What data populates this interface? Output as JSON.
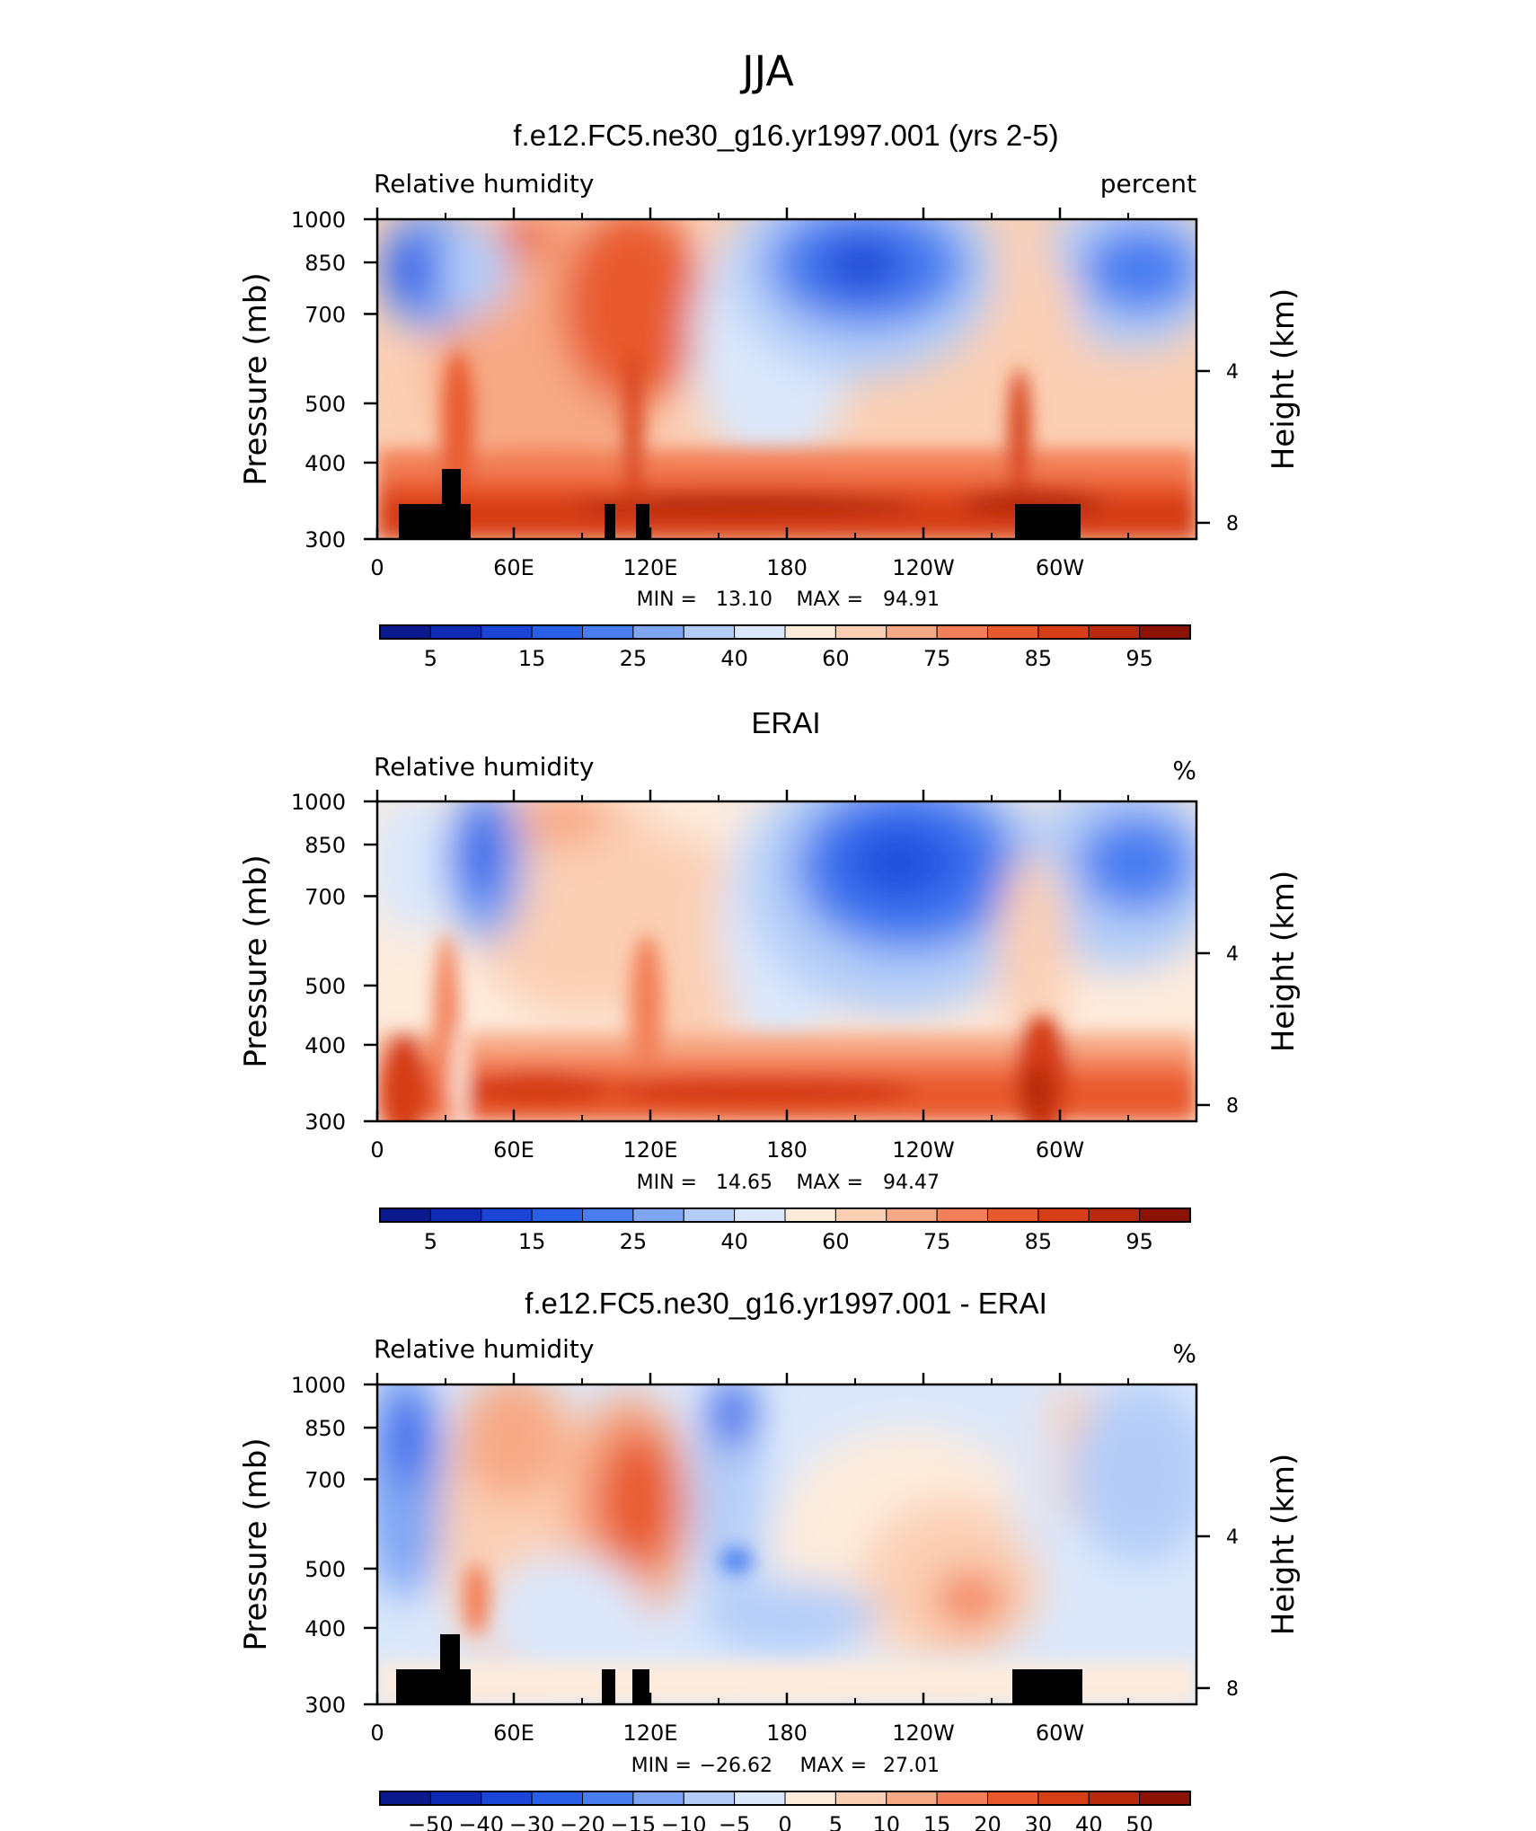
{
  "figure": {
    "title": "JJA",
    "colors": {
      "field_scale": [
        "#0a1a8c",
        "#0f2ab5",
        "#1a45d6",
        "#2a5fe8",
        "#4a7ef0",
        "#7ea5f4",
        "#b4cdf8",
        "#dbe8fb",
        "#fdebdc",
        "#fbcfb4",
        "#f7a985",
        "#f27f57",
        "#e85a2d",
        "#d63e16",
        "#b82a0b",
        "#8c1205"
      ],
      "diff_scale": [
        "#0a1a8c",
        "#0f2ab5",
        "#1a45d6",
        "#2a5fe8",
        "#4a7ef0",
        "#7ea5f4",
        "#b4cdf8",
        "#dbe8fb",
        "#fdebdc",
        "#fbcfb4",
        "#f7a985",
        "#f27f57",
        "#e85a2d",
        "#d63e16",
        "#b82a0b",
        "#8c1205"
      ]
    }
  },
  "chart_data": [
    {
      "type": "heatmap",
      "title": "f.e12.FC5.ne30_g16.yr1997.001 (yrs 2-5)",
      "left_label": "Relative  humidity",
      "right_label": "percent",
      "ylabel": "Pressure  (mb)",
      "ylabel_right": "Height  (km)",
      "x_ticks": [
        "0",
        "60E",
        "120E",
        "180",
        "120W",
        "60W"
      ],
      "y_ticks": [
        "300",
        "400",
        "500",
        "700",
        "850",
        "1000"
      ],
      "y_ticks_right": [
        "8",
        "4"
      ],
      "xlim": [
        0,
        360
      ],
      "ylim": [
        1000,
        300
      ],
      "y_scale": "log",
      "min_label": "MIN =",
      "min_value": "13.10",
      "max_label": "MAX =",
      "max_value": "94.91",
      "colorbar_labels": [
        "5",
        "15",
        "25",
        "40",
        "60",
        "75",
        "85",
        "95"
      ],
      "grid": false,
      "topography_mask": true
    },
    {
      "type": "heatmap",
      "title": "ERAI",
      "left_label": "Relative  humidity",
      "right_label": "%",
      "ylabel": "Pressure  (mb)",
      "ylabel_right": "Height  (km)",
      "x_ticks": [
        "0",
        "60E",
        "120E",
        "180",
        "120W",
        "60W"
      ],
      "y_ticks": [
        "300",
        "400",
        "500",
        "700",
        "850",
        "1000"
      ],
      "y_ticks_right": [
        "8",
        "4"
      ],
      "xlim": [
        0,
        360
      ],
      "ylim": [
        1000,
        300
      ],
      "y_scale": "log",
      "min_label": "MIN =",
      "min_value": "14.65",
      "max_label": "MAX =",
      "max_value": "94.47",
      "colorbar_labels": [
        "5",
        "15",
        "25",
        "40",
        "60",
        "75",
        "85",
        "95"
      ],
      "grid": false,
      "topography_mask": false
    },
    {
      "type": "heatmap",
      "title": "f.e12.FC5.ne30_g16.yr1997.001 - ERAI",
      "left_label": "Relative  humidity",
      "right_label": "%",
      "ylabel": "Pressure  (mb)",
      "ylabel_right": "Height  (km)",
      "x_ticks": [
        "0",
        "60E",
        "120E",
        "180",
        "120W",
        "60W"
      ],
      "y_ticks": [
        "300",
        "400",
        "500",
        "700",
        "850",
        "1000"
      ],
      "y_ticks_right": [
        "8",
        "4"
      ],
      "xlim": [
        0,
        360
      ],
      "ylim": [
        1000,
        300
      ],
      "y_scale": "log",
      "min_label": "MIN =",
      "min_value": "−26.62",
      "max_label": "MAX =",
      "max_value": "27.01",
      "colorbar_labels": [
        "−50",
        "−40",
        "−30",
        "−20",
        "−15",
        "−10",
        "−5",
        "0",
        "5",
        "10",
        "15",
        "20",
        "30",
        "40",
        "50"
      ],
      "grid": false,
      "topography_mask": true
    }
  ]
}
